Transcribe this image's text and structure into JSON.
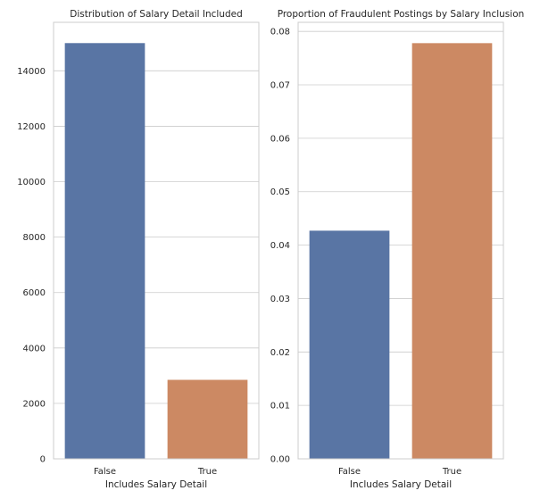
{
  "chart_data": [
    {
      "type": "bar",
      "title": "Distribution of Salary Detail Included",
      "xlabel": "Includes Salary Detail",
      "ylabel": "",
      "categories": [
        "False",
        "True"
      ],
      "values": [
        15000,
        2850
      ],
      "colors": [
        "#5975a4",
        "#cc8963"
      ],
      "ylim": [
        0,
        15750
      ],
      "yticks": [
        0,
        2000,
        4000,
        6000,
        8000,
        10000,
        12000,
        14000
      ],
      "ytick_labels": [
        "0",
        "2000",
        "4000",
        "6000",
        "8000",
        "10000",
        "12000",
        "14000"
      ],
      "grid": true
    },
    {
      "type": "bar",
      "title": "Proportion of Fraudulent Postings by Salary Inclusion",
      "xlabel": "Includes Salary Detail",
      "ylabel": "",
      "categories": [
        "False",
        "True"
      ],
      "values": [
        0.0427,
        0.0778
      ],
      "colors": [
        "#5975a4",
        "#cc8963"
      ],
      "ylim": [
        0,
        0.0817
      ],
      "yticks": [
        0,
        0.01,
        0.02,
        0.03,
        0.04,
        0.05,
        0.06,
        0.07,
        0.08
      ],
      "ytick_labels": [
        "0.00",
        "0.01",
        "0.02",
        "0.03",
        "0.04",
        "0.05",
        "0.06",
        "0.07",
        "0.08"
      ],
      "grid": true
    }
  ]
}
